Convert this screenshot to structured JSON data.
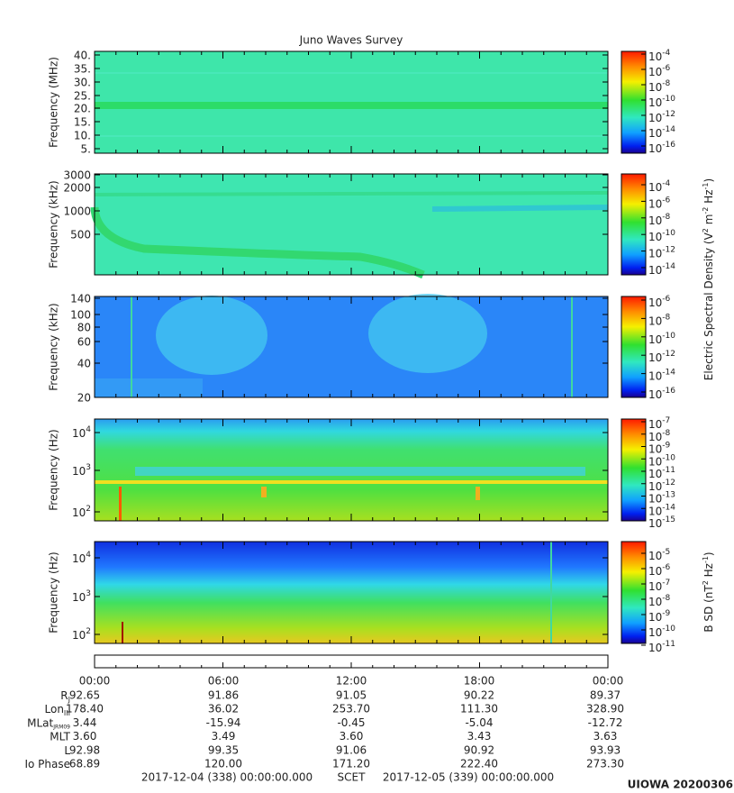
{
  "title": "Juno Waves Survey",
  "panels": [
    {
      "ylabel": "Frequency (MHz)",
      "yticks": [
        "40.",
        "35.",
        "30.",
        "25.",
        "20.",
        "15.",
        "10.",
        "5."
      ],
      "colorbar": [
        {
          "base": "10",
          "exp": "-4"
        },
        {
          "base": "10",
          "exp": "-6"
        },
        {
          "base": "10",
          "exp": "-8"
        },
        {
          "base": "10",
          "exp": "-10"
        },
        {
          "base": "10",
          "exp": "-12"
        },
        {
          "base": "10",
          "exp": "-14"
        },
        {
          "base": "10",
          "exp": "-16"
        }
      ]
    },
    {
      "ylabel": "Frequency (kHz)",
      "yticks": [
        "3000",
        "2000",
        "1000",
        "500"
      ],
      "colorbar": [
        {
          "base": "10",
          "exp": "-4"
        },
        {
          "base": "10",
          "exp": "-6"
        },
        {
          "base": "10",
          "exp": "-8"
        },
        {
          "base": "10",
          "exp": "-10"
        },
        {
          "base": "10",
          "exp": "-12"
        },
        {
          "base": "10",
          "exp": "-14"
        }
      ]
    },
    {
      "ylabel": "Frequency (kHz)",
      "yticks": [
        "140",
        "100",
        "80",
        "60",
        "40",
        "20"
      ],
      "colorbar": [
        {
          "base": "10",
          "exp": "-6"
        },
        {
          "base": "10",
          "exp": "-8"
        },
        {
          "base": "10",
          "exp": "-10"
        },
        {
          "base": "10",
          "exp": "-12"
        },
        {
          "base": "10",
          "exp": "-14"
        },
        {
          "base": "10",
          "exp": "-16"
        }
      ]
    },
    {
      "ylabel": "Frequency (Hz)",
      "yticks": [
        {
          "base": "10",
          "exp": "4"
        },
        {
          "base": "10",
          "exp": "3"
        },
        {
          "base": "10",
          "exp": "2"
        }
      ],
      "colorbar": [
        {
          "base": "10",
          "exp": "-7"
        },
        {
          "base": "10",
          "exp": "-8"
        },
        {
          "base": "10",
          "exp": "-9"
        },
        {
          "base": "10",
          "exp": "-10"
        },
        {
          "base": "10",
          "exp": "-11"
        },
        {
          "base": "10",
          "exp": "-12"
        },
        {
          "base": "10",
          "exp": "-13"
        },
        {
          "base": "10",
          "exp": "-14"
        },
        {
          "base": "10",
          "exp": "-15"
        }
      ]
    },
    {
      "ylabel": "Frequency (Hz)",
      "yticks": [
        {
          "base": "10",
          "exp": "4"
        },
        {
          "base": "10",
          "exp": "3"
        },
        {
          "base": "10",
          "exp": "2"
        }
      ],
      "colorbar": [
        {
          "base": "10",
          "exp": "-5"
        },
        {
          "base": "10",
          "exp": "-6"
        },
        {
          "base": "10",
          "exp": "-7"
        },
        {
          "base": "10",
          "exp": "-8"
        },
        {
          "base": "10",
          "exp": "-9"
        },
        {
          "base": "10",
          "exp": "-10"
        },
        {
          "base": "10",
          "exp": "-11"
        }
      ]
    }
  ],
  "colorbar_labels": [
    [
      "Electric Spectral Density (V",
      "2",
      " m",
      "-2",
      " Hz",
      "-1",
      ")"
    ],
    [
      "B SD (nT",
      "2",
      " Hz",
      "-1",
      ")"
    ]
  ],
  "time_axis": [
    "00:00",
    "06:00",
    "12:00",
    "18:00",
    "00:00"
  ],
  "ephemeris": [
    {
      "label": [
        "R",
        "J"
      ],
      "values": [
        "92.65",
        "91.86",
        "91.05",
        "90.22",
        "89.37"
      ]
    },
    {
      "label": [
        "Lon",
        "III"
      ],
      "values": [
        "178.40",
        "36.02",
        "253.70",
        "111.30",
        "328.90"
      ]
    },
    {
      "label": [
        "MLat",
        "JRM09"
      ],
      "values": [
        "3.44",
        "-15.94",
        "-0.45",
        "-5.04",
        "-12.72"
      ]
    },
    {
      "label": [
        "MLT"
      ],
      "values": [
        "3.60",
        "3.49",
        "3.60",
        "3.43",
        "3.63"
      ]
    },
    {
      "label": [
        "L"
      ],
      "values": [
        "92.98",
        "99.35",
        "91.06",
        "90.92",
        "93.93"
      ]
    },
    {
      "label": [
        "Io Phase"
      ],
      "values": [
        "68.89",
        "120.00",
        "171.20",
        "222.40",
        "273.30"
      ]
    }
  ],
  "footer": {
    "start": "2017-12-04 (338) 00:00:00.000",
    "center": "SCET",
    "end": "2017-12-05 (339) 00:00:00.000"
  },
  "credit": "UIOWA 20200306"
}
